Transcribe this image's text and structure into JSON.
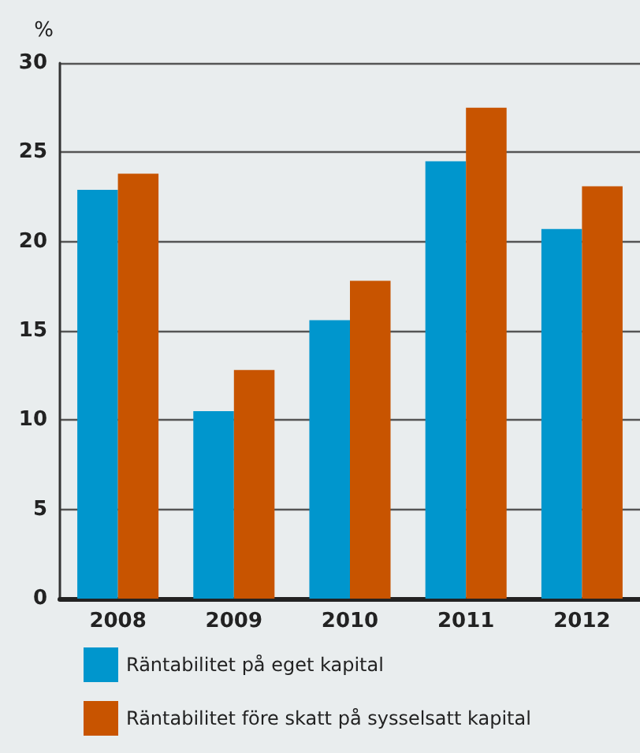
{
  "chart_data": {
    "type": "bar",
    "ylabel": "%",
    "categories": [
      "2008",
      "2009",
      "2010",
      "2011",
      "2012"
    ],
    "series": [
      {
        "name": "Räntabilitet på eget kapital",
        "color": "#0096cd",
        "values": [
          22.9,
          10.5,
          15.6,
          24.5,
          20.7
        ]
      },
      {
        "name": "Räntabilitet före skatt på sysselsatt kapital",
        "color": "#c85400",
        "values": [
          23.8,
          12.8,
          17.8,
          27.5,
          23.1
        ]
      }
    ],
    "ylim": [
      0,
      30
    ],
    "yticks": [
      0,
      5,
      10,
      15,
      20,
      25,
      30
    ],
    "grid": "y",
    "legend": "bottom left"
  }
}
